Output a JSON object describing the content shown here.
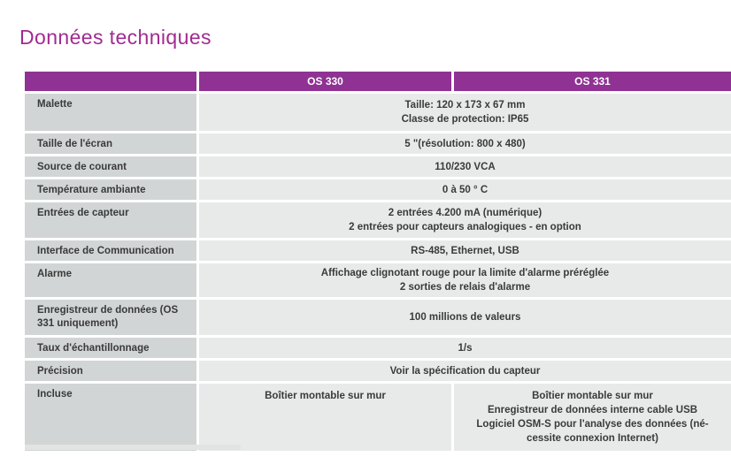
{
  "page": {
    "title": "Données techniques"
  },
  "colors": {
    "title_magenta": "#a12b90",
    "header_purple": "#8f3293",
    "label_cell_gray": "#d2d5d5",
    "value_cell_gray": "#e8eaea",
    "text_dark": "#3a3a3a"
  },
  "table": {
    "header": {
      "os330": "OS 330",
      "os331": "OS 331"
    },
    "rows": [
      {
        "label": "Malette",
        "value_lines": [
          "Taille: 120 x 173 x 67 mm",
          "Classe de protection: IP65"
        ]
      },
      {
        "label": "Taille de l'écran",
        "value_lines": [
          "5 \"(résolution: 800 x 480)"
        ]
      },
      {
        "label": "Source de courant",
        "value_lines": [
          "110/230 VCA"
        ]
      },
      {
        "label": "Température ambiante",
        "value_lines": [
          "0 à 50 ° C"
        ]
      },
      {
        "label": "Entrées de capteur",
        "value_lines": [
          "2 entrées 4.200 mA (numérique)",
          "2 entrées pour capteurs analogiques - en option"
        ]
      },
      {
        "label": "Interface de Communication",
        "value_lines": [
          "RS-485, Ethernet, USB"
        ]
      },
      {
        "label": "Alarme",
        "value_lines": [
          "Affichage clignotant rouge pour la limite d'alarme préréglée",
          "2 sorties de relais d'alarme"
        ]
      },
      {
        "label": "Enregistreur de données (OS 331 uniquement)",
        "value_lines": [
          "100 millions de valeurs"
        ]
      },
      {
        "label": "Taux d'échantillonnage",
        "value_lines": [
          "1/s"
        ]
      },
      {
        "label": "Précision",
        "value_lines": [
          "Voir la spécification du capteur"
        ]
      },
      {
        "label": "Incluse",
        "os330_lines": [
          "Boîtier montable sur mur"
        ],
        "os331_lines": [
          "Boîtier montable sur mur",
          "Enregistreur de données interne cable USB",
          "Logiciel OSM-S pour l'analyse des données (né-",
          "cessite connexion Internet)"
        ]
      }
    ]
  }
}
